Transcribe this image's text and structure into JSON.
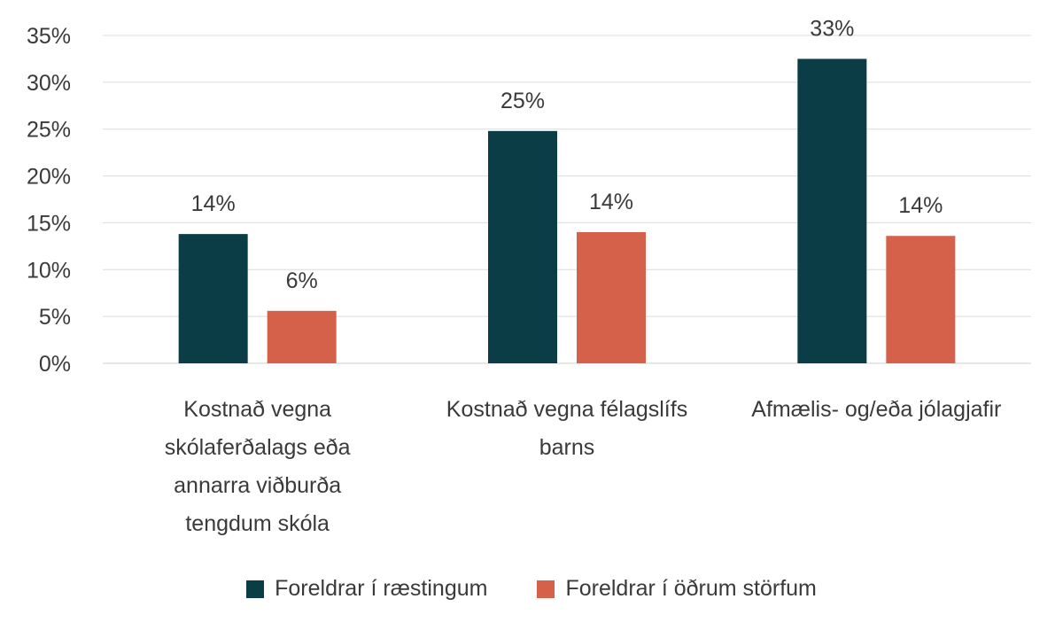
{
  "chart_data": {
    "type": "bar",
    "title": "",
    "xlabel": "",
    "ylabel": "",
    "ylim": [
      0,
      35
    ],
    "y_ticks": [
      0,
      5,
      10,
      15,
      20,
      25,
      30,
      35
    ],
    "y_tick_labels": [
      "0%",
      "5%",
      "10%",
      "15%",
      "20%",
      "25%",
      "30%",
      "35%"
    ],
    "grid": true,
    "legend_position": "bottom",
    "categories": [
      [
        "Kostnað vegna",
        "skólaferðalags eða",
        "annarra viðburða",
        "tengdum skóla"
      ],
      [
        "Kostnað vegna félagslífs",
        "barns"
      ],
      [
        "Afmælis- og/eða jólagjafir"
      ]
    ],
    "series": [
      {
        "name": "Foreldrar í ræstingum",
        "color": "#0b3d47",
        "values": [
          13.8,
          24.8,
          32.5
        ],
        "labels": [
          "14%",
          "25%",
          "33%"
        ]
      },
      {
        "name": "Foreldrar í öðrum störfum",
        "color": "#d5614a",
        "values": [
          5.6,
          14.0,
          13.6
        ],
        "labels": [
          "6%",
          "14%",
          "14%"
        ]
      }
    ]
  },
  "legend": {
    "series1_label": "Foreldrar í ræstingum",
    "series2_label": "Foreldrar í öðrum störfum"
  }
}
